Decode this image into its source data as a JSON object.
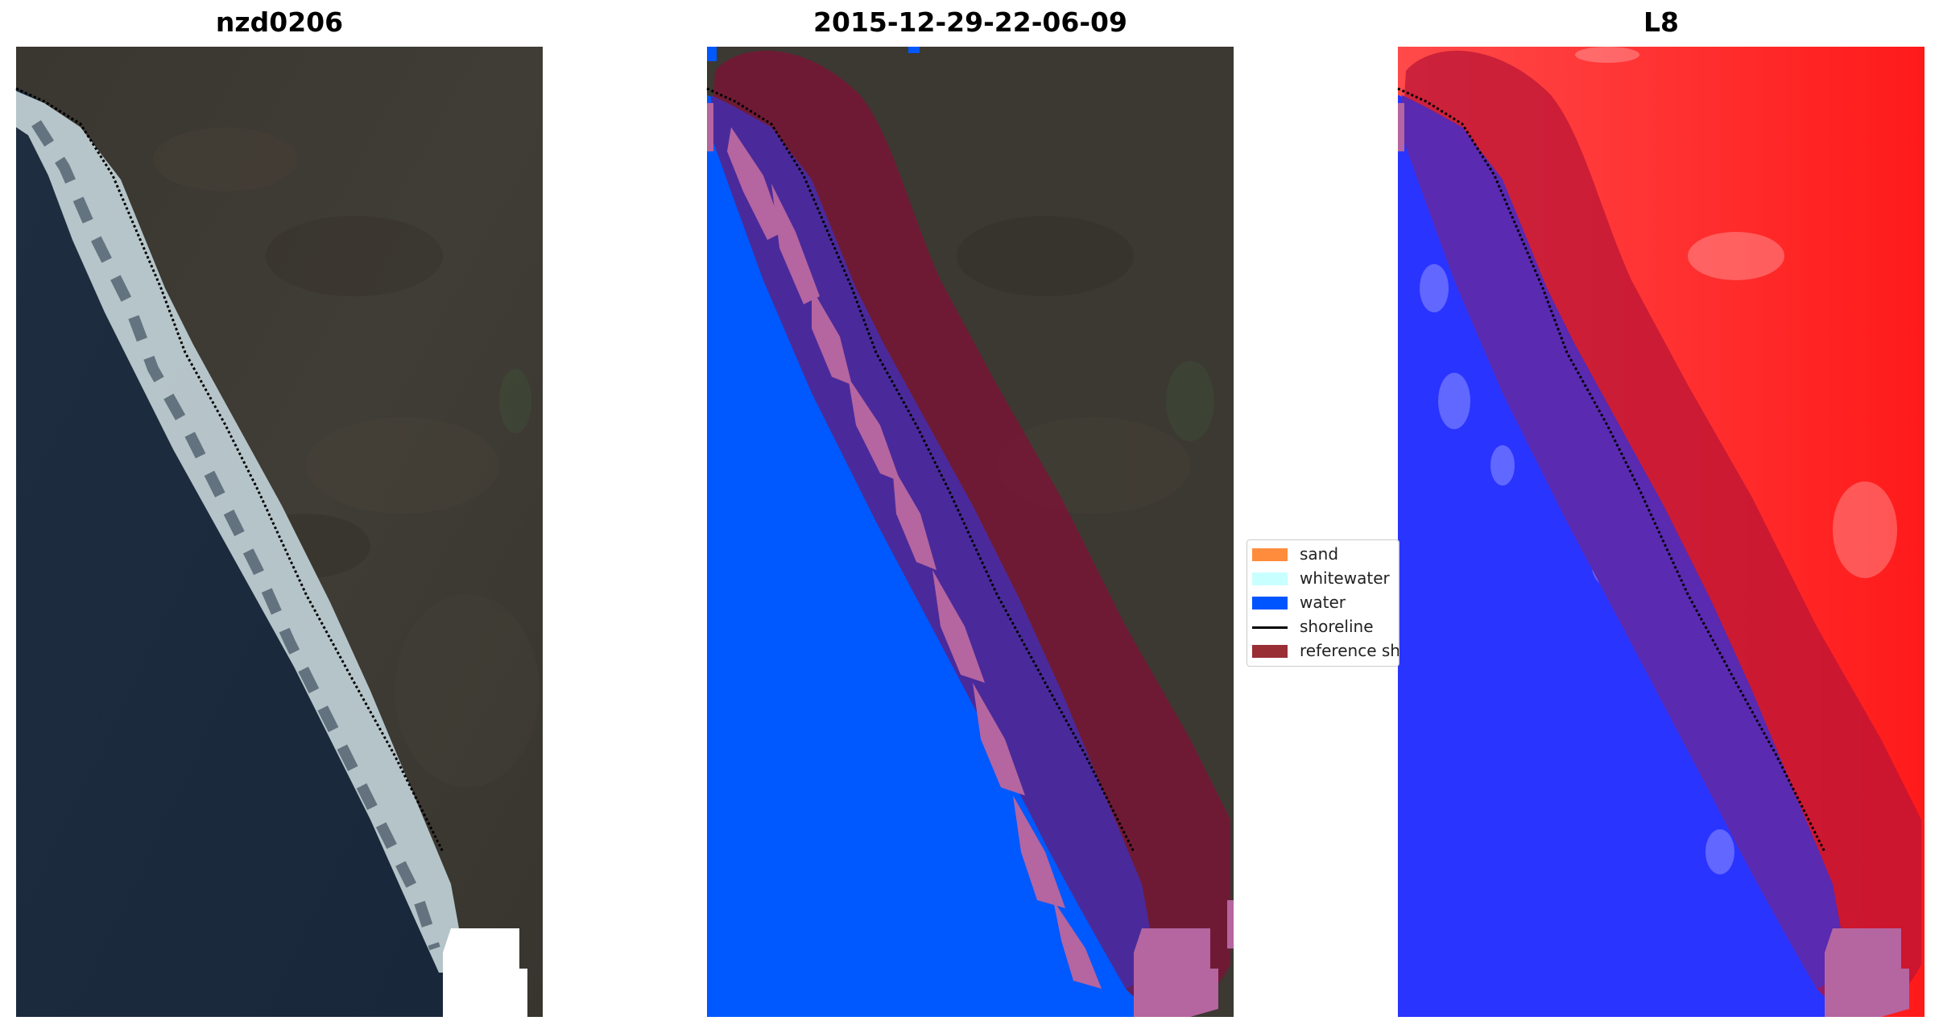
{
  "figure": {
    "panels": [
      {
        "title": "nzd0206"
      },
      {
        "title": "2015-12-29-22-06-09"
      },
      {
        "title": "L8"
      }
    ],
    "legend": {
      "items": [
        {
          "label": "sand",
          "color": "#ff8c3c",
          "kind": "patch"
        },
        {
          "label": "whitewater",
          "color": "#c8ffff",
          "kind": "patch"
        },
        {
          "label": "water",
          "color": "#0055ff",
          "kind": "patch"
        },
        {
          "label": "shoreline",
          "color": "#000000",
          "kind": "line"
        },
        {
          "label": "reference sh",
          "color": "#9a2e35",
          "kind": "patch"
        }
      ]
    },
    "colors": {
      "ocean_dark": "#1c2b3c",
      "land_dark": "#3d3a34",
      "surf_white": "#e6f0f0",
      "water_class": "#0055ff",
      "reference_buffer": "#7a1436",
      "overlap_purple": "#4a2a9a",
      "sand_pink": "#b565a0",
      "ndwi_land": "#ff2020",
      "ndwi_water": "#2030ff"
    }
  }
}
